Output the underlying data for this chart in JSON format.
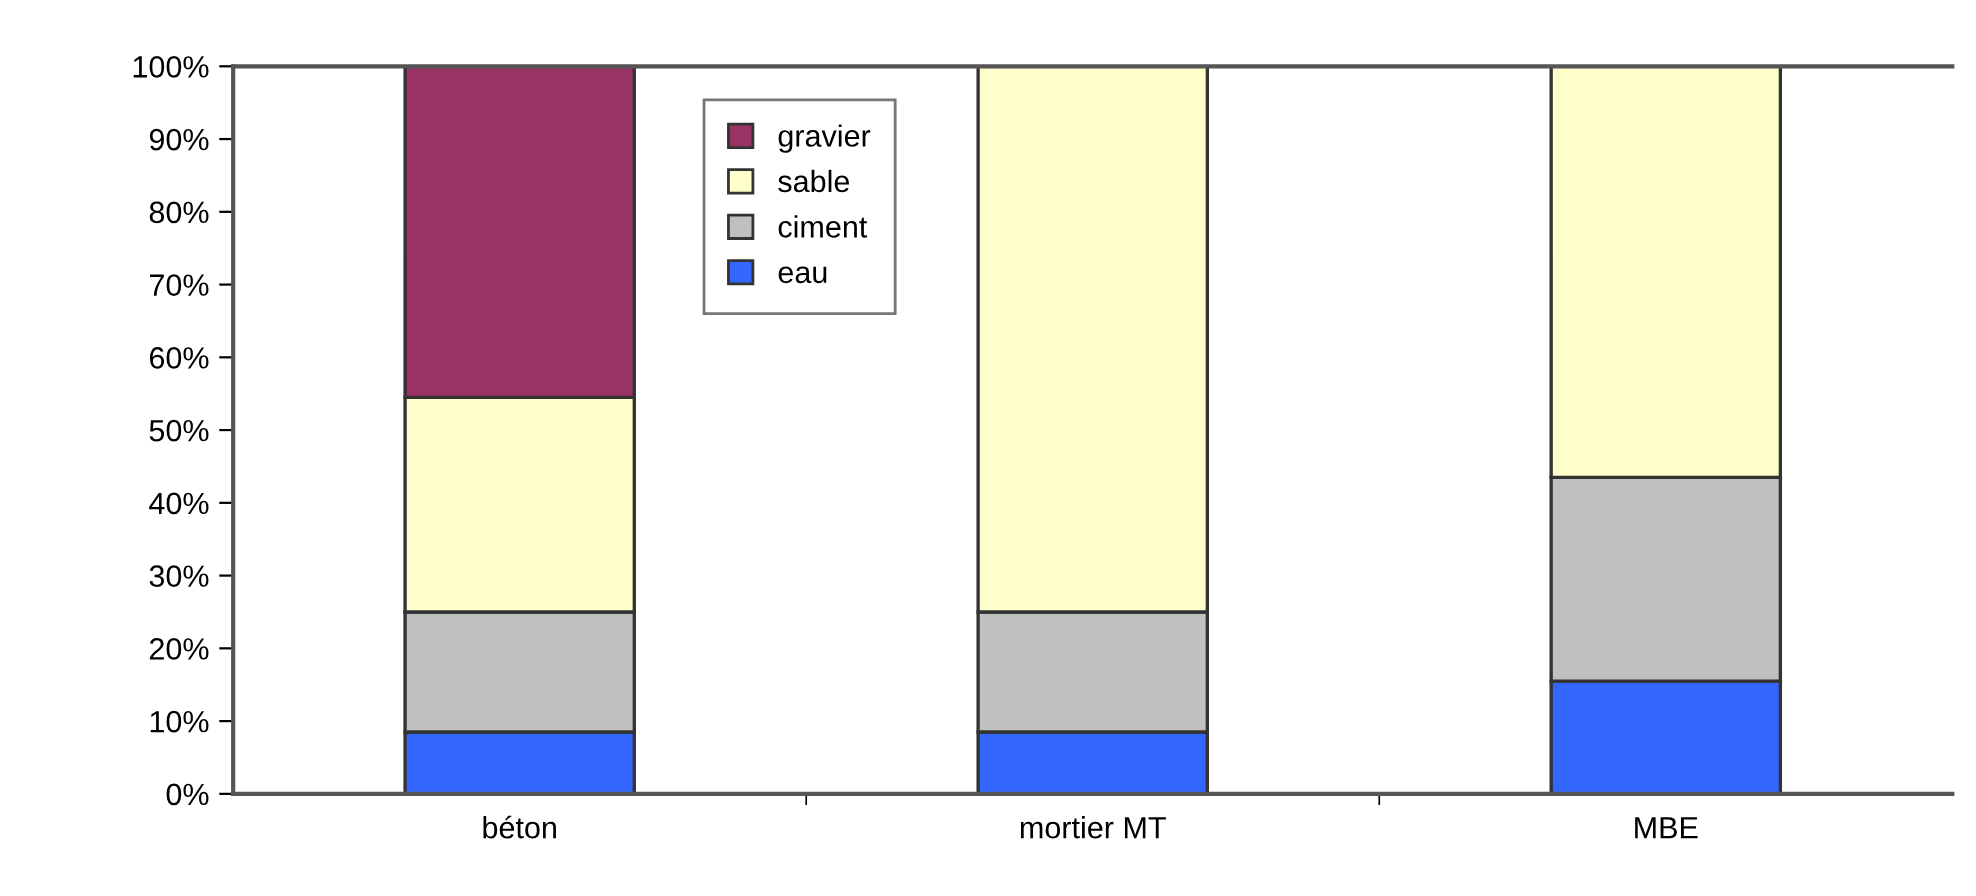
{
  "chart_data": {
    "type": "bar",
    "stacked": true,
    "categories": [
      "béton",
      "mortier MT",
      "MBE"
    ],
    "series": [
      {
        "name": "eau",
        "color": "#3366ff",
        "values": [
          8.5,
          8.5,
          15.5
        ]
      },
      {
        "name": "ciment",
        "color": "#c0c0c0",
        "values": [
          16.5,
          16.5,
          28
        ]
      },
      {
        "name": "sable",
        "color": "#ffffcc",
        "values": [
          29.5,
          75,
          56.5
        ]
      },
      {
        "name": "gravier",
        "color": "#993366",
        "values": [
          45.5,
          null,
          null
        ]
      }
    ],
    "ylim": [
      0,
      100
    ],
    "yticks": [
      {
        "value": 0,
        "label": "0%"
      },
      {
        "value": 10,
        "label": "10%"
      },
      {
        "value": 20,
        "label": "20%"
      },
      {
        "value": 30,
        "label": "30%"
      },
      {
        "value": 40,
        "label": "40%"
      },
      {
        "value": 50,
        "label": "50%"
      },
      {
        "value": 60,
        "label": "60%"
      },
      {
        "value": 70,
        "label": "70%"
      },
      {
        "value": 80,
        "label": "80%"
      },
      {
        "value": 90,
        "label": "90%"
      },
      {
        "value": 100,
        "label": "100%"
      }
    ],
    "grid": false,
    "legend": "top left"
  }
}
